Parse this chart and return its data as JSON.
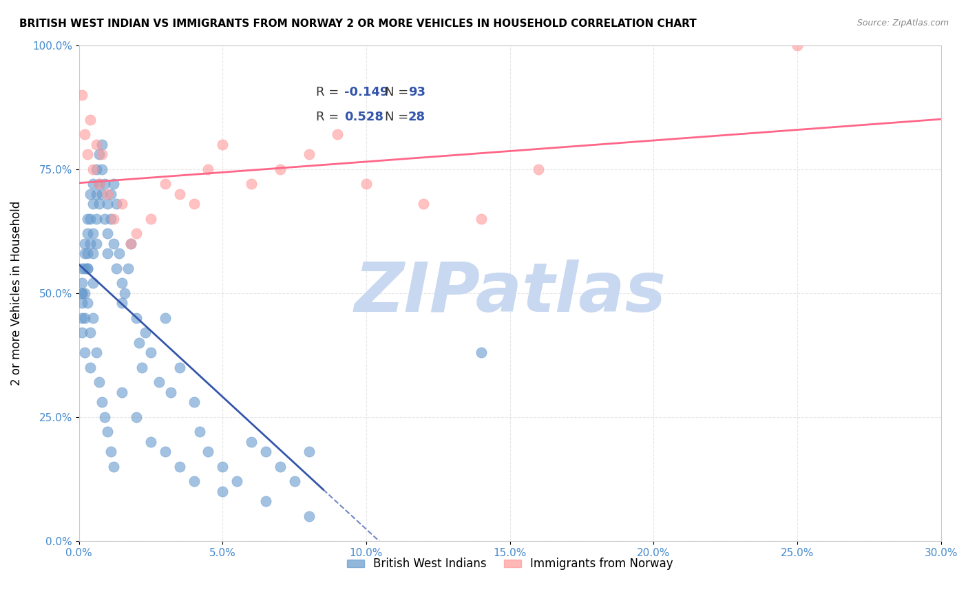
{
  "title": "BRITISH WEST INDIAN VS IMMIGRANTS FROM NORWAY 2 OR MORE VEHICLES IN HOUSEHOLD CORRELATION CHART",
  "source": "Source: ZipAtlas.com",
  "xlabel": "",
  "ylabel": "2 or more Vehicles in Household",
  "xlim": [
    0.0,
    30.0
  ],
  "ylim": [
    0.0,
    100.0
  ],
  "xticks": [
    0.0,
    5.0,
    10.0,
    15.0,
    20.0,
    25.0,
    30.0
  ],
  "yticks": [
    0.0,
    25.0,
    50.0,
    75.0,
    100.0
  ],
  "xtick_labels": [
    "0.0%",
    "5.0%",
    "10.0%",
    "15.0%",
    "20.0%",
    "25.0%",
    "30.0%"
  ],
  "ytick_labels": [
    "0.0%",
    "25.0%",
    "50.0%",
    "75.0%",
    "100.0%"
  ],
  "blue_R": -0.149,
  "blue_N": 93,
  "pink_R": 0.528,
  "pink_N": 28,
  "blue_color": "#6699cc",
  "pink_color": "#ff9999",
  "blue_line_color": "#3355aa",
  "pink_line_color": "#ff6688",
  "watermark": "ZIPatlas",
  "watermark_color": "#c8d8f0",
  "legend_label_blue": "British West Indians",
  "legend_label_pink": "Immigrants from Norway",
  "blue_x": [
    0.1,
    0.1,
    0.1,
    0.1,
    0.1,
    0.2,
    0.2,
    0.2,
    0.2,
    0.2,
    0.3,
    0.3,
    0.3,
    0.3,
    0.4,
    0.4,
    0.4,
    0.5,
    0.5,
    0.5,
    0.5,
    0.6,
    0.6,
    0.6,
    0.6,
    0.7,
    0.7,
    0.7,
    0.8,
    0.8,
    0.8,
    0.9,
    0.9,
    1.0,
    1.0,
    1.0,
    1.1,
    1.1,
    1.2,
    1.2,
    1.3,
    1.3,
    1.4,
    1.5,
    1.5,
    1.6,
    1.7,
    1.8,
    2.0,
    2.1,
    2.2,
    2.3,
    2.5,
    2.8,
    3.0,
    3.2,
    3.5,
    4.0,
    4.2,
    4.5,
    5.0,
    5.5,
    6.0,
    6.5,
    7.0,
    7.5,
    8.0,
    0.1,
    0.1,
    0.2,
    0.3,
    0.3,
    0.4,
    0.4,
    0.5,
    0.5,
    0.6,
    0.7,
    0.8,
    0.9,
    1.0,
    1.1,
    1.2,
    1.5,
    2.0,
    2.5,
    3.0,
    3.5,
    4.0,
    5.0,
    6.5,
    8.0,
    14.0
  ],
  "blue_y": [
    52,
    48,
    45,
    50,
    55,
    60,
    55,
    50,
    45,
    58,
    65,
    62,
    58,
    55,
    70,
    65,
    60,
    72,
    68,
    62,
    58,
    75,
    70,
    65,
    60,
    78,
    72,
    68,
    80,
    75,
    70,
    72,
    65,
    68,
    62,
    58,
    70,
    65,
    72,
    60,
    68,
    55,
    58,
    52,
    48,
    50,
    55,
    60,
    45,
    40,
    35,
    42,
    38,
    32,
    45,
    30,
    35,
    28,
    22,
    18,
    15,
    12,
    20,
    18,
    15,
    12,
    18,
    50,
    42,
    38,
    55,
    48,
    42,
    35,
    52,
    45,
    38,
    32,
    28,
    25,
    22,
    18,
    15,
    30,
    25,
    20,
    18,
    15,
    12,
    10,
    8,
    5,
    38
  ],
  "pink_x": [
    0.1,
    0.2,
    0.3,
    0.4,
    0.5,
    0.6,
    0.7,
    0.8,
    1.0,
    1.2,
    1.5,
    1.8,
    2.0,
    2.5,
    3.0,
    3.5,
    4.0,
    4.5,
    5.0,
    6.0,
    7.0,
    8.0,
    9.0,
    10.0,
    12.0,
    14.0,
    16.0,
    25.0
  ],
  "pink_y": [
    90,
    82,
    78,
    85,
    75,
    80,
    72,
    78,
    70,
    65,
    68,
    60,
    62,
    65,
    72,
    70,
    68,
    75,
    80,
    72,
    75,
    78,
    82,
    72,
    68,
    65,
    75,
    100
  ]
}
